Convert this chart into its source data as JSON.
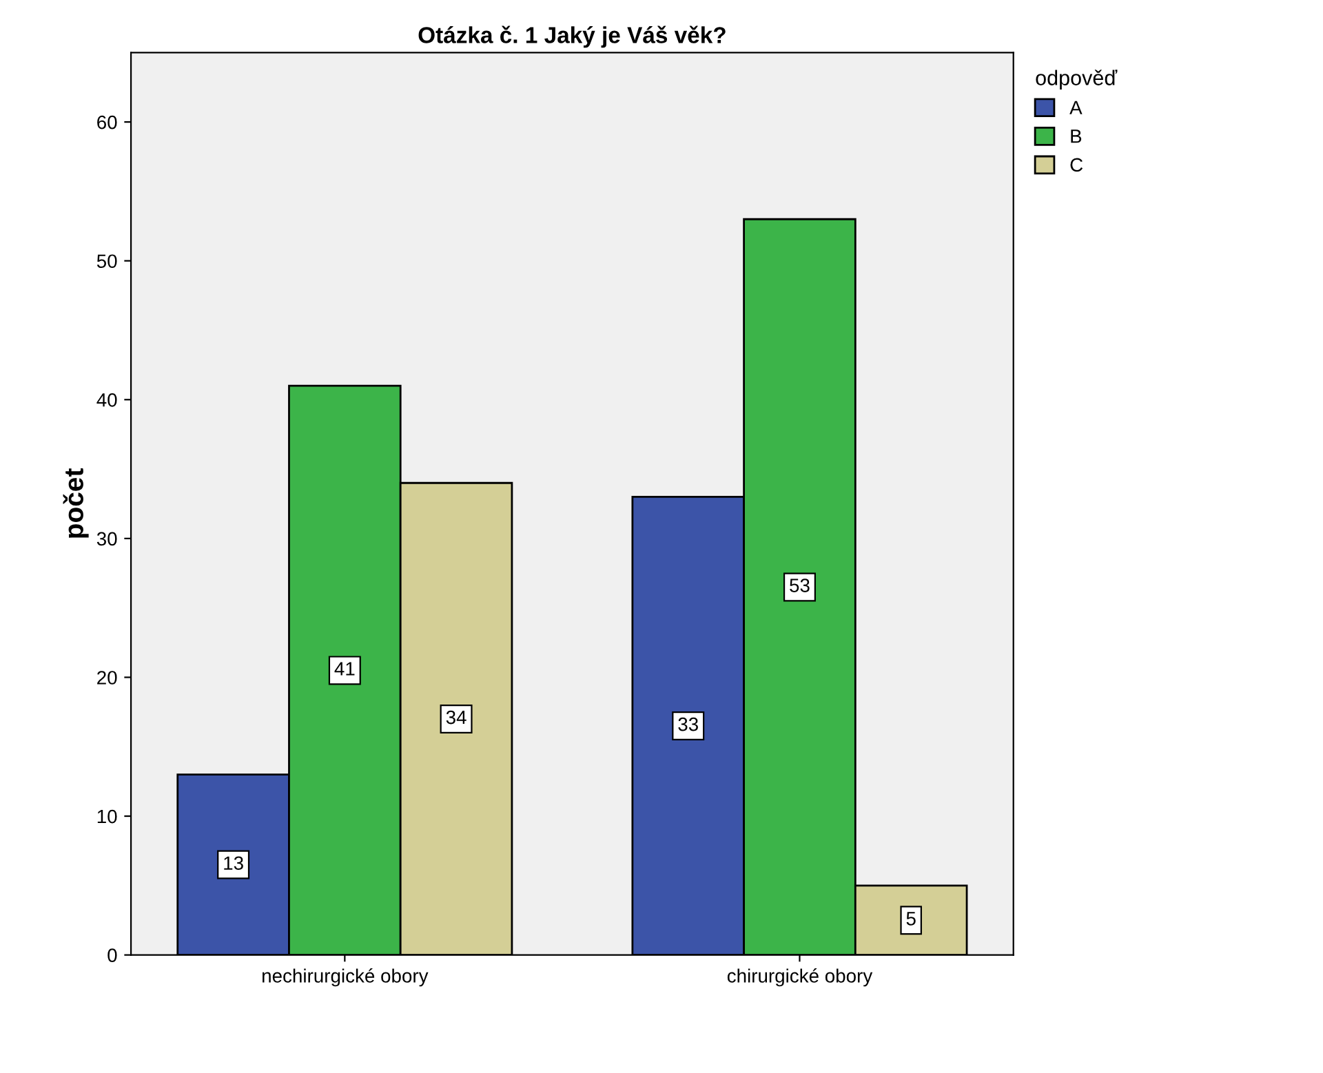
{
  "chart_data": {
    "type": "bar",
    "title": "Otázka č. 1 Jaký je Váš věk?",
    "ylabel": "počet",
    "legend_title": "odpověď",
    "categories": [
      "nechirurgické obory",
      "chirurgické obory"
    ],
    "series": [
      {
        "name": "A",
        "color": "#3c54a8",
        "values": [
          13,
          33
        ]
      },
      {
        "name": "B",
        "color": "#3cb449",
        "values": [
          41,
          53
        ]
      },
      {
        "name": "C",
        "color": "#d4cf96",
        "values": [
          34,
          5
        ]
      }
    ],
    "ylim": [
      0,
      65
    ],
    "yticks": [
      0,
      10,
      20,
      30,
      40,
      50,
      60
    ],
    "grid": false,
    "legend": "top right",
    "data_labels": true
  }
}
